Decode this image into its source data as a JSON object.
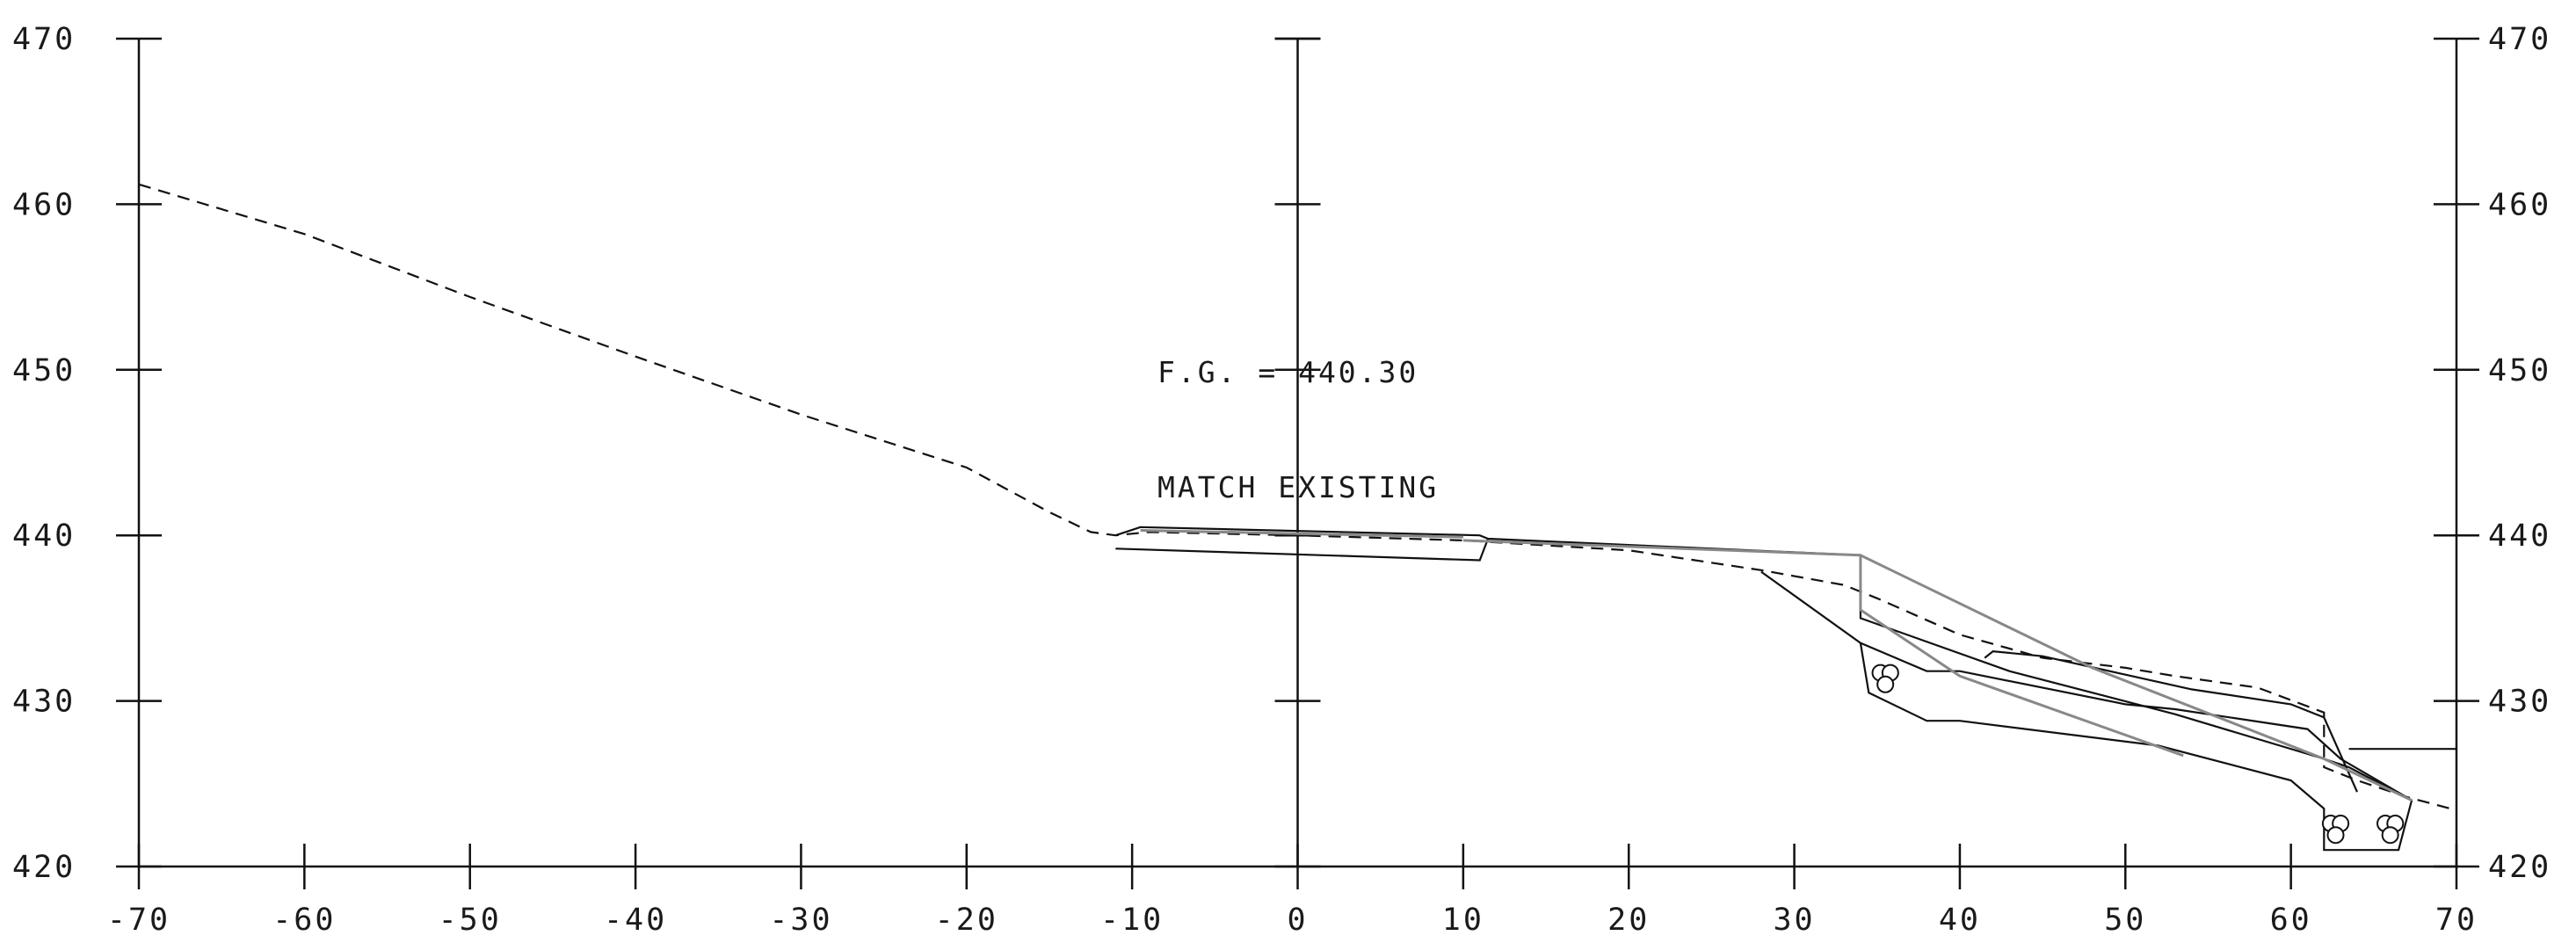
{
  "chart_data": {
    "type": "line",
    "title": "",
    "xlabel": "",
    "ylabel": "",
    "xlim": [
      -70,
      70
    ],
    "ylim": [
      420,
      470
    ],
    "x_ticks": [
      -70,
      -60,
      -50,
      -40,
      -30,
      -20,
      -10,
      0,
      10,
      20,
      30,
      40,
      50,
      60,
      70
    ],
    "x_tick_labels": [
      "-70",
      "-60",
      "-50",
      "-40",
      "-30",
      "-20",
      "-10",
      "0",
      "10",
      "20",
      "30",
      "40",
      "50",
      "60",
      "70"
    ],
    "y_ticks": [
      420,
      430,
      440,
      450,
      460,
      470
    ],
    "y_tick_labels": [
      "420",
      "430",
      "440",
      "450",
      "460",
      "470"
    ],
    "annotations": {
      "finished_grade": "F.G. = 440.30",
      "match_existing": "MATCH EXISTING"
    },
    "series": [
      {
        "style": "dashed",
        "x": [
          -70,
          -60,
          -50,
          -40,
          -30,
          -20,
          -15,
          -12.5,
          -11,
          -9,
          0,
          10,
          20,
          28,
          33,
          35,
          40,
          45,
          50,
          53,
          58,
          62,
          62,
          64,
          67,
          70
        ],
        "y": [
          461.2,
          458.2,
          454.4,
          450.8,
          447.3,
          444.1,
          441.4,
          440.2,
          440.0,
          440.2,
          440.0,
          439.7,
          439.1,
          437.9,
          437.0,
          436.2,
          434.0,
          432.6,
          432.0,
          431.5,
          430.8,
          429.3,
          426.0,
          425.2,
          424.2,
          423.4
        ]
      },
      {
        "style": "solid",
        "x": [
          -11,
          -9.5,
          11,
          11.5,
          34,
          34,
          43,
          53,
          62,
          63.5,
          67.3
        ],
        "y": [
          440.0,
          440.5,
          440.0,
          439.8,
          438.8,
          435.0,
          431.8,
          429.2,
          426.5,
          426.0,
          424.0
        ]
      },
      {
        "style": "solid",
        "x": [
          -11,
          11,
          11.5
        ],
        "y": [
          439.2,
          438.5,
          439.8
        ]
      },
      {
        "style": "solid",
        "x": [
          28,
          34,
          38,
          40,
          50,
          53,
          61,
          63,
          67.3
        ],
        "y": [
          437.8,
          433.5,
          431.8,
          431.8,
          429.8,
          429.5,
          428.3,
          426.5,
          424.0
        ]
      },
      {
        "style": "solid",
        "x": [
          34,
          34.5,
          38,
          40,
          52,
          60,
          62,
          62,
          66.5,
          67.3
        ],
        "y": [
          433.5,
          430.5,
          428.8,
          428.8,
          427.3,
          425.2,
          423.5,
          421.0,
          421.0,
          424.0
        ]
      },
      {
        "style": "solid",
        "x": [
          41.5,
          42,
          45,
          54,
          60,
          62,
          64
        ],
        "y": [
          432.6,
          433.0,
          432.7,
          430.7,
          429.8,
          429.0,
          424.5
        ]
      },
      {
        "style": "solid",
        "x": [
          63.5,
          70
        ],
        "y": [
          427.1,
          427.1
        ]
      },
      {
        "style": "gray",
        "x": [
          34,
          34,
          40,
          53.5
        ],
        "y": [
          438.8,
          435.5,
          431.5,
          426.7
        ]
      },
      {
        "style": "gray",
        "x": [
          34,
          48,
          62,
          67.3
        ],
        "y": [
          438.8,
          432.0,
          426.5,
          424.0
        ]
      },
      {
        "style": "gray",
        "x": [
          10,
          34
        ],
        "y": [
          439.7,
          438.8
        ]
      },
      {
        "style": "gray",
        "x": [
          -9.5,
          10
        ],
        "y": [
          440.3,
          439.9
        ]
      }
    ],
    "pipes": [
      {
        "x": [
          35.2,
          35.8,
          35.5
        ],
        "y": [
          431.7,
          431.7,
          431.0
        ]
      },
      {
        "x": [
          62.4,
          63.0,
          62.7
        ],
        "y": [
          422.6,
          422.6,
          421.9
        ]
      },
      {
        "x": [
          65.7,
          66.3,
          66.0
        ],
        "y": [
          422.6,
          422.6,
          421.9
        ]
      }
    ],
    "grid": false,
    "legend": "none"
  }
}
